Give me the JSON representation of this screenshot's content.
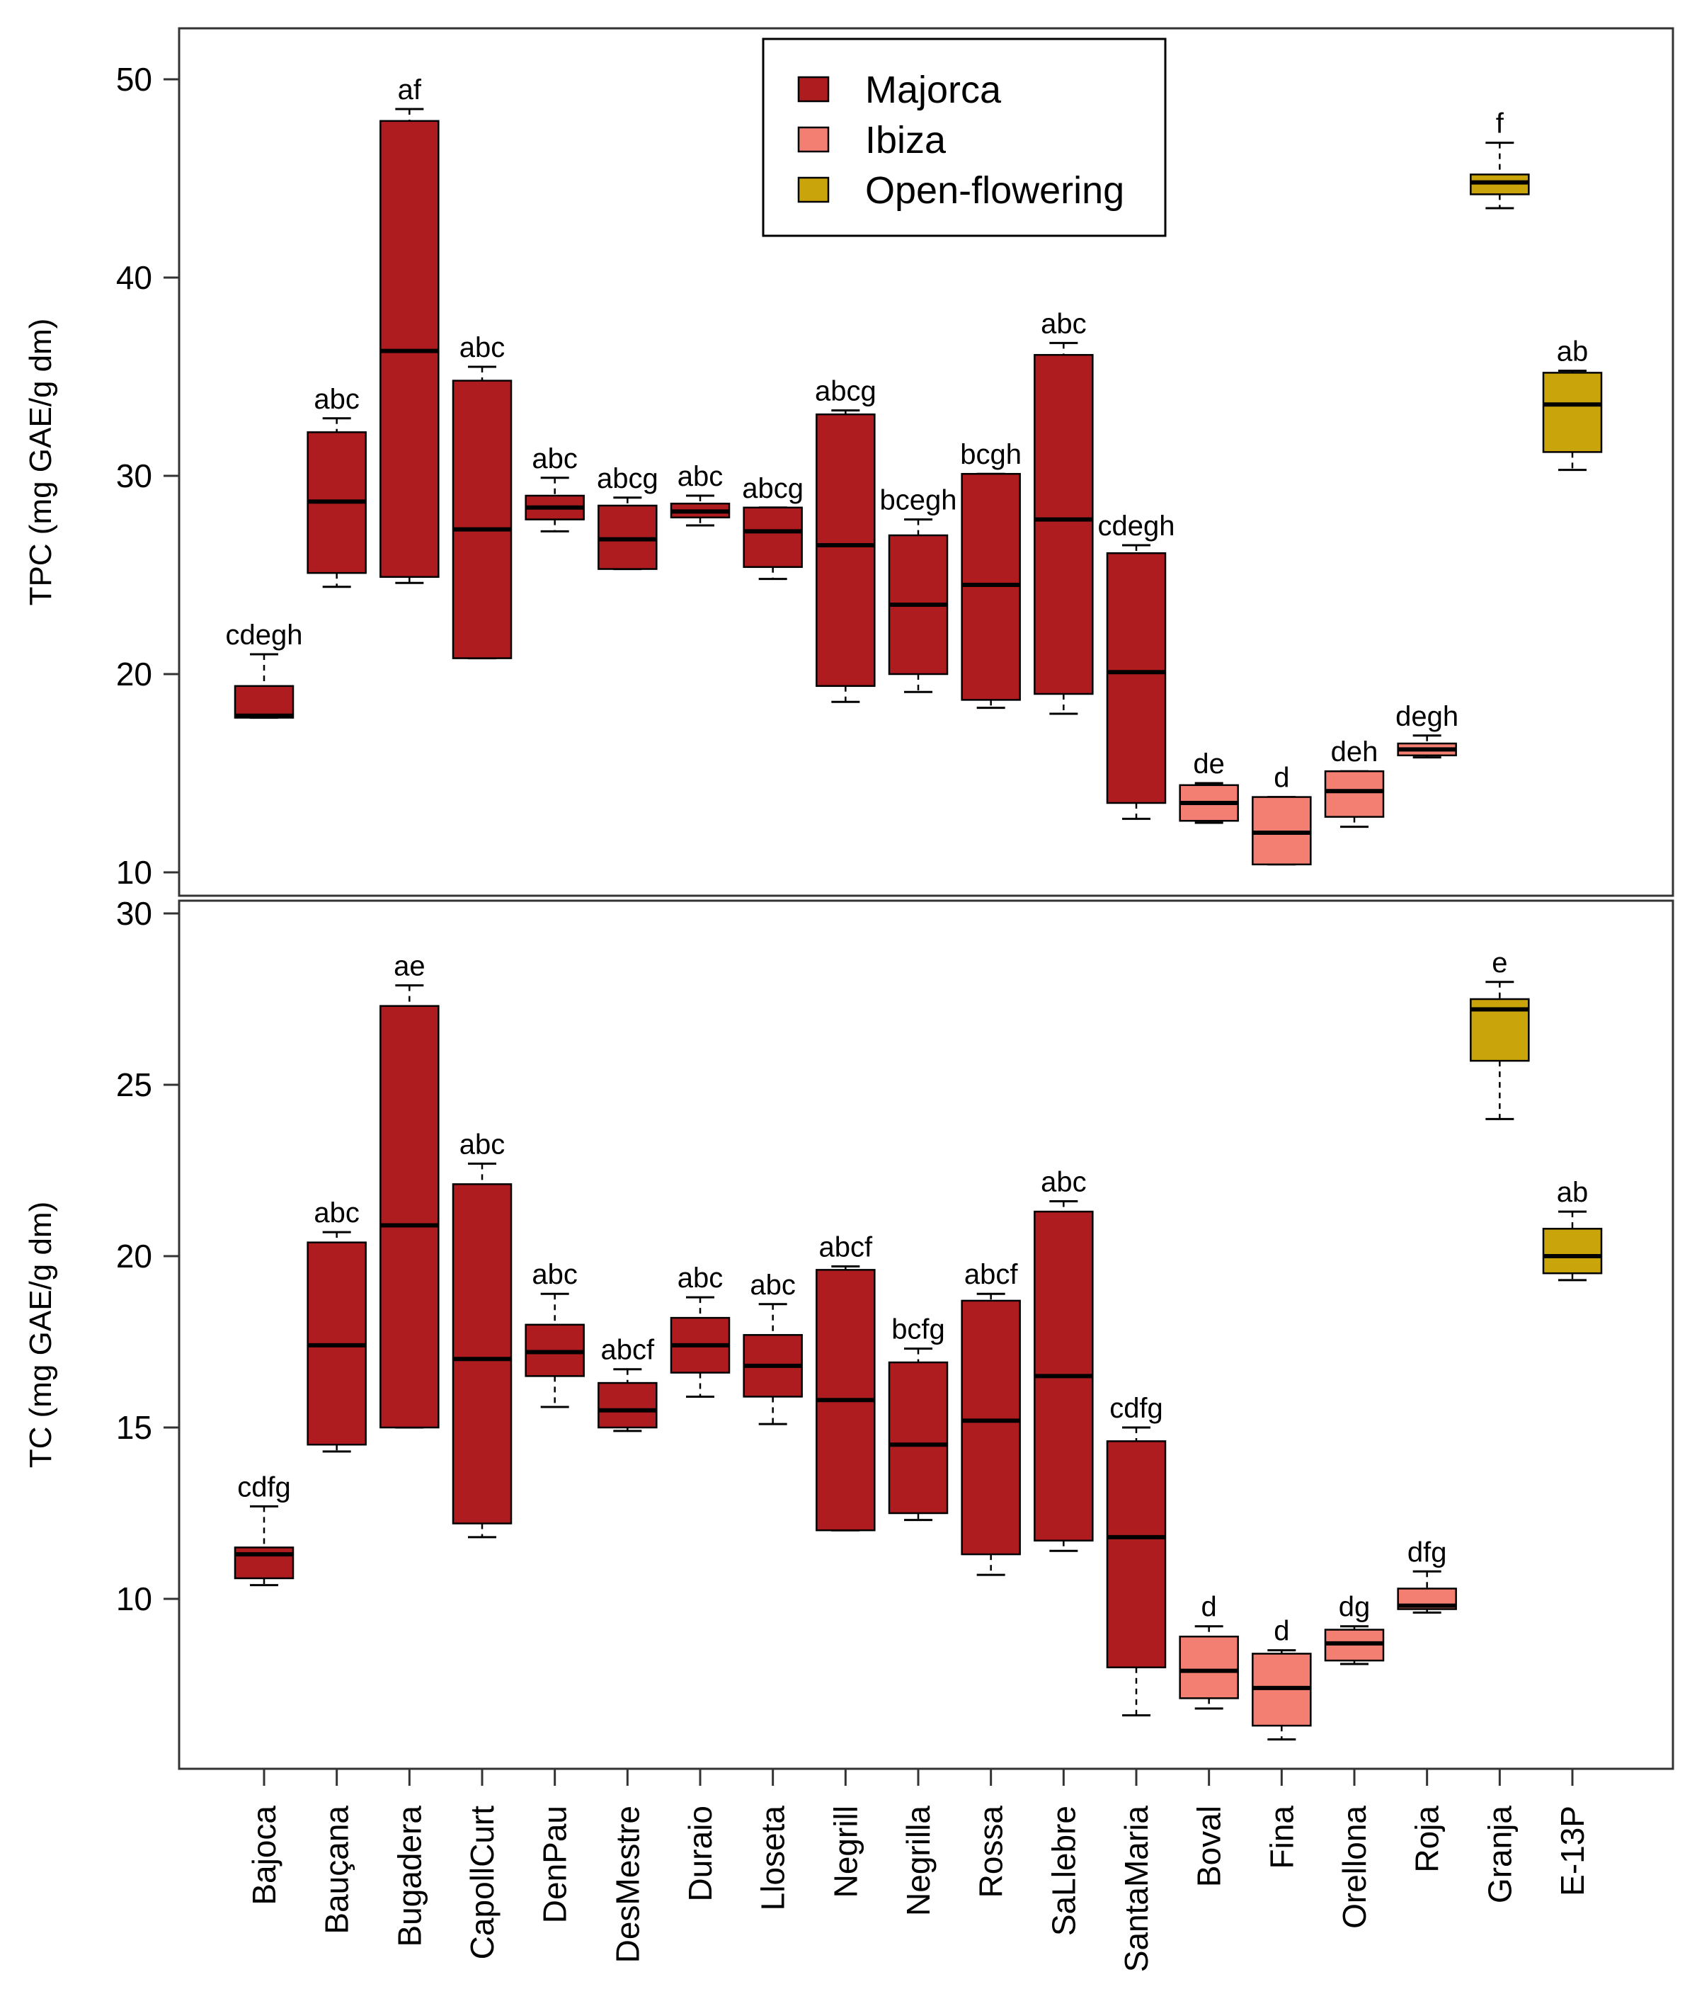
{
  "chart_data": [
    {
      "type": "box",
      "panel": "top",
      "ylabel": "TPC  (mg GAE/g dm)",
      "ylim": [
        9,
        52
      ],
      "yticks": [
        10,
        20,
        30,
        40,
        50
      ],
      "legend": {
        "placement": "top-center",
        "entries": [
          {
            "name": "Majorca",
            "color": "#AE1C1F"
          },
          {
            "name": "Ibiza",
            "color": "#F27F72"
          },
          {
            "name": "Open-flowering",
            "color": "#C9A40A"
          }
        ]
      },
      "boxes": [
        {
          "cat": "Bajoca",
          "group": "Majorca",
          "whislo": 17.8,
          "q1": 17.8,
          "med": 17.9,
          "q3": 19.4,
          "whishi": 21.0,
          "sig": "cdegh"
        },
        {
          "cat": "Bauçana",
          "group": "Majorca",
          "whislo": 24.4,
          "q1": 25.1,
          "med": 28.7,
          "q3": 32.2,
          "whishi": 32.9,
          "sig": "abc"
        },
        {
          "cat": "Bugadera",
          "group": "Majorca",
          "whislo": 24.6,
          "q1": 24.9,
          "med": 36.3,
          "q3": 47.9,
          "whishi": 48.5,
          "sig": "af"
        },
        {
          "cat": "CapollCurt",
          "group": "Majorca",
          "whislo": 20.8,
          "q1": 20.8,
          "med": 27.3,
          "q3": 34.8,
          "whishi": 35.5,
          "sig": "abc"
        },
        {
          "cat": "DenPau",
          "group": "Majorca",
          "whislo": 27.2,
          "q1": 27.8,
          "med": 28.4,
          "q3": 29.0,
          "whishi": 29.9,
          "sig": "abc"
        },
        {
          "cat": "DesMestre",
          "group": "Majorca",
          "whislo": 25.3,
          "q1": 25.3,
          "med": 26.8,
          "q3": 28.5,
          "whishi": 28.9,
          "sig": "abcg"
        },
        {
          "cat": "Duraio",
          "group": "Majorca",
          "whislo": 27.5,
          "q1": 27.9,
          "med": 28.2,
          "q3": 28.6,
          "whishi": 29.0,
          "sig": "abc"
        },
        {
          "cat": "Lloseta",
          "group": "Majorca",
          "whislo": 24.8,
          "q1": 25.4,
          "med": 27.2,
          "q3": 28.4,
          "whishi": 28.4,
          "sig": "abcg"
        },
        {
          "cat": "Negrill",
          "group": "Majorca",
          "whislo": 18.6,
          "q1": 19.4,
          "med": 26.5,
          "q3": 33.1,
          "whishi": 33.3,
          "sig": "abcg"
        },
        {
          "cat": "Negrilla",
          "group": "Majorca",
          "whislo": 19.1,
          "q1": 20.0,
          "med": 23.5,
          "q3": 27.0,
          "whishi": 27.8,
          "sig": "bcegh"
        },
        {
          "cat": "Rossa",
          "group": "Majorca",
          "whislo": 18.3,
          "q1": 18.7,
          "med": 24.5,
          "q3": 30.1,
          "whishi": 30.1,
          "sig": "bcgh"
        },
        {
          "cat": "SaLlebre",
          "group": "Majorca",
          "whislo": 18.0,
          "q1": 19.0,
          "med": 27.8,
          "q3": 36.1,
          "whishi": 36.7,
          "sig": "abc"
        },
        {
          "cat": "SantaMaria",
          "group": "Majorca",
          "whislo": 12.7,
          "q1": 13.5,
          "med": 20.1,
          "q3": 26.1,
          "whishi": 26.5,
          "sig": "cdegh"
        },
        {
          "cat": "Boval",
          "group": "Ibiza",
          "whislo": 12.5,
          "q1": 12.6,
          "med": 13.5,
          "q3": 14.4,
          "whishi": 14.5,
          "sig": "de"
        },
        {
          "cat": "Fina",
          "group": "Ibiza",
          "whislo": 10.4,
          "q1": 10.4,
          "med": 12.0,
          "q3": 13.8,
          "whishi": 13.8,
          "sig": "d"
        },
        {
          "cat": "Orellona",
          "group": "Ibiza",
          "whislo": 12.3,
          "q1": 12.8,
          "med": 14.1,
          "q3": 15.1,
          "whishi": 15.1,
          "sig": "deh"
        },
        {
          "cat": "Roja",
          "group": "Ibiza",
          "whislo": 15.8,
          "q1": 15.9,
          "med": 16.2,
          "q3": 16.5,
          "whishi": 16.9,
          "sig": "degh"
        },
        {
          "cat": "Granja",
          "group": "Open-flowering",
          "whislo": 43.5,
          "q1": 44.2,
          "med": 44.8,
          "q3": 45.2,
          "whishi": 46.8,
          "sig": "f"
        },
        {
          "cat": "E-13P",
          "group": "Open-flowering",
          "whislo": 30.3,
          "q1": 31.2,
          "med": 33.6,
          "q3": 35.2,
          "whishi": 35.3,
          "sig": "ab"
        }
      ]
    },
    {
      "type": "box",
      "panel": "bottom",
      "ylabel": "TC (mg GAE/g dm)",
      "ylim": [
        5,
        30
      ],
      "yticks": [
        10,
        15,
        20,
        25,
        30
      ],
      "xlabel": "",
      "boxes": [
        {
          "cat": "Bajoca",
          "group": "Majorca",
          "whislo": 10.4,
          "q1": 10.6,
          "med": 11.3,
          "q3": 11.5,
          "whishi": 12.7,
          "sig": "cdfg"
        },
        {
          "cat": "Bauçana",
          "group": "Majorca",
          "whislo": 14.3,
          "q1": 14.5,
          "med": 17.4,
          "q3": 20.4,
          "whishi": 20.7,
          "sig": "abc"
        },
        {
          "cat": "Bugadera",
          "group": "Majorca",
          "whislo": 15.0,
          "q1": 15.0,
          "med": 20.9,
          "q3": 27.3,
          "whishi": 27.9,
          "sig": "ae"
        },
        {
          "cat": "CapollCurt",
          "group": "Majorca",
          "whislo": 11.8,
          "q1": 12.2,
          "med": 17.0,
          "q3": 22.1,
          "whishi": 22.7,
          "sig": "abc"
        },
        {
          "cat": "DenPau",
          "group": "Majorca",
          "whislo": 15.6,
          "q1": 16.5,
          "med": 17.2,
          "q3": 18.0,
          "whishi": 18.9,
          "sig": "abc"
        },
        {
          "cat": "DesMestre",
          "group": "Majorca",
          "whislo": 14.9,
          "q1": 15.0,
          "med": 15.5,
          "q3": 16.3,
          "whishi": 16.7,
          "sig": "abcf"
        },
        {
          "cat": "Duraio",
          "group": "Majorca",
          "whislo": 15.9,
          "q1": 16.6,
          "med": 17.4,
          "q3": 18.2,
          "whishi": 18.8,
          "sig": "abc"
        },
        {
          "cat": "Lloseta",
          "group": "Majorca",
          "whislo": 15.1,
          "q1": 15.9,
          "med": 16.8,
          "q3": 17.7,
          "whishi": 18.6,
          "sig": "abc"
        },
        {
          "cat": "Negrill",
          "group": "Majorca",
          "whislo": 12.0,
          "q1": 12.0,
          "med": 15.8,
          "q3": 19.6,
          "whishi": 19.7,
          "sig": "abcf"
        },
        {
          "cat": "Negrilla",
          "group": "Majorca",
          "whislo": 12.3,
          "q1": 12.5,
          "med": 14.5,
          "q3": 16.9,
          "whishi": 17.3,
          "sig": "bcfg"
        },
        {
          "cat": "Rossa",
          "group": "Majorca",
          "whislo": 10.7,
          "q1": 11.3,
          "med": 15.2,
          "q3": 18.7,
          "whishi": 18.9,
          "sig": "abcf"
        },
        {
          "cat": "SaLlebre",
          "group": "Majorca",
          "whislo": 11.4,
          "q1": 11.7,
          "med": 16.5,
          "q3": 21.3,
          "whishi": 21.6,
          "sig": "abc"
        },
        {
          "cat": "SantaMaria",
          "group": "Majorca",
          "whislo": 6.6,
          "q1": 8.0,
          "med": 11.8,
          "q3": 14.6,
          "whishi": 15.0,
          "sig": "cdfg"
        },
        {
          "cat": "Boval",
          "group": "Ibiza",
          "whislo": 6.8,
          "q1": 7.1,
          "med": 7.9,
          "q3": 8.9,
          "whishi": 9.2,
          "sig": "d"
        },
        {
          "cat": "Fina",
          "group": "Ibiza",
          "whislo": 5.9,
          "q1": 6.3,
          "med": 7.4,
          "q3": 8.4,
          "whishi": 8.5,
          "sig": "d"
        },
        {
          "cat": "Orellona",
          "group": "Ibiza",
          "whislo": 8.1,
          "q1": 8.2,
          "med": 8.7,
          "q3": 9.1,
          "whishi": 9.2,
          "sig": "dg"
        },
        {
          "cat": "Roja",
          "group": "Ibiza",
          "whislo": 9.6,
          "q1": 9.7,
          "med": 9.8,
          "q3": 10.3,
          "whishi": 10.8,
          "sig": "dfg"
        },
        {
          "cat": "Granja",
          "group": "Open-flowering",
          "whislo": 24.0,
          "q1": 25.7,
          "med": 27.2,
          "q3": 27.5,
          "whishi": 28.0,
          "sig": "e"
        },
        {
          "cat": "E-13P",
          "group": "Open-flowering",
          "whislo": 19.3,
          "q1": 19.5,
          "med": 20.0,
          "q3": 20.8,
          "whishi": 21.3,
          "sig": "ab"
        }
      ]
    }
  ]
}
